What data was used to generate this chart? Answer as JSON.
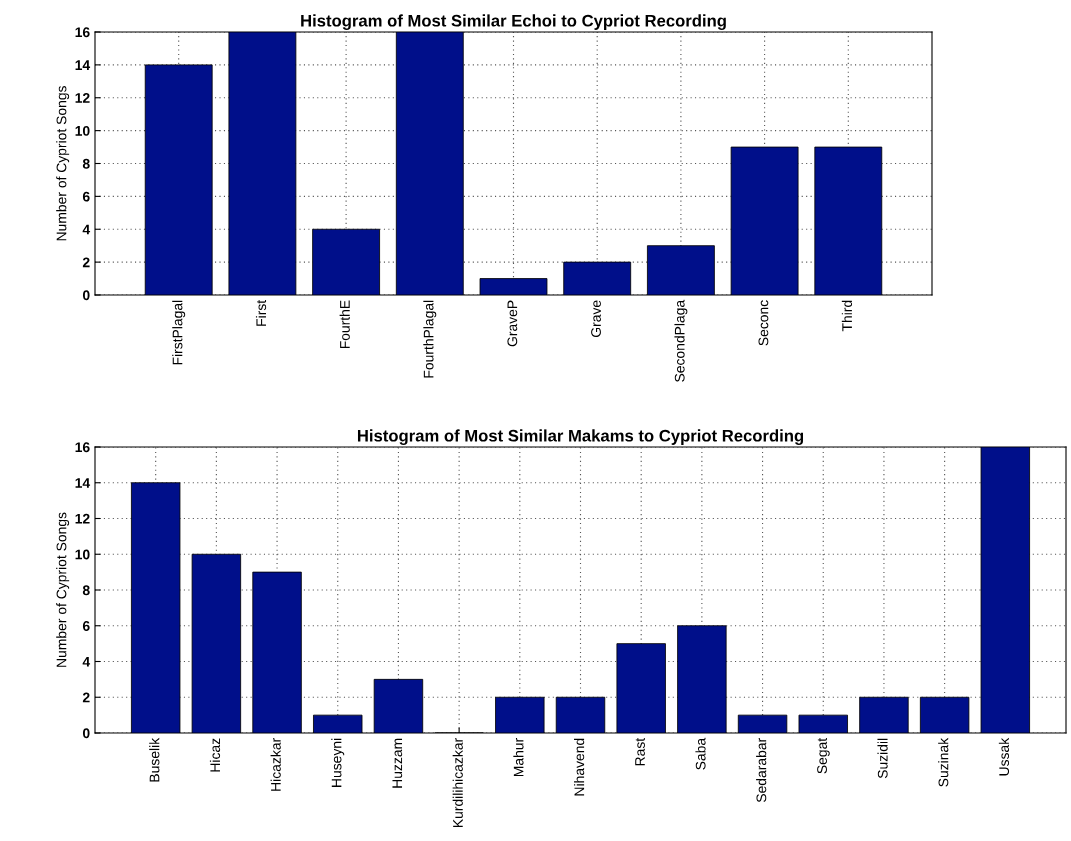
{
  "chart_data": [
    {
      "type": "bar",
      "title": "Histogram of Most Similar Echoi to Cypriot Recording",
      "ylabel": "Number of Cypriot Songs",
      "categories": [
        "FirstPlagal",
        "First",
        "FourthE",
        "FourthPlagal",
        "GraveP",
        "Grave",
        "SecondPlaga",
        "Seconc",
        "Third"
      ],
      "values": [
        14,
        16,
        4,
        16,
        1,
        2,
        3,
        9,
        9
      ],
      "color": "#000f8a",
      "ylim": [
        0,
        16
      ],
      "yticks": [
        0,
        2,
        4,
        6,
        8,
        10,
        12,
        14,
        16
      ],
      "grid": true
    },
    {
      "type": "bar",
      "title": "Histogram of Most Similar Makams to Cypriot Recording",
      "ylabel": "Number of Cypriot Songs",
      "categories": [
        "Buselik",
        "Hicaz",
        "Hicazkar",
        "Huseyni",
        "Huzzam",
        "Kurdilihicazkar",
        "Mahur",
        "Nihavend",
        "Rast",
        "Saba",
        "Sedarabar",
        "Segat",
        "Suzidil",
        "Suzinak",
        "Ussak"
      ],
      "values": [
        14,
        10,
        9,
        1,
        3,
        0,
        2,
        2,
        5,
        6,
        1,
        1,
        2,
        2,
        16
      ],
      "color": "#000f8a",
      "ylim": [
        0,
        16
      ],
      "yticks": [
        0,
        2,
        4,
        6,
        8,
        10,
        12,
        14,
        16
      ],
      "grid": true
    }
  ]
}
